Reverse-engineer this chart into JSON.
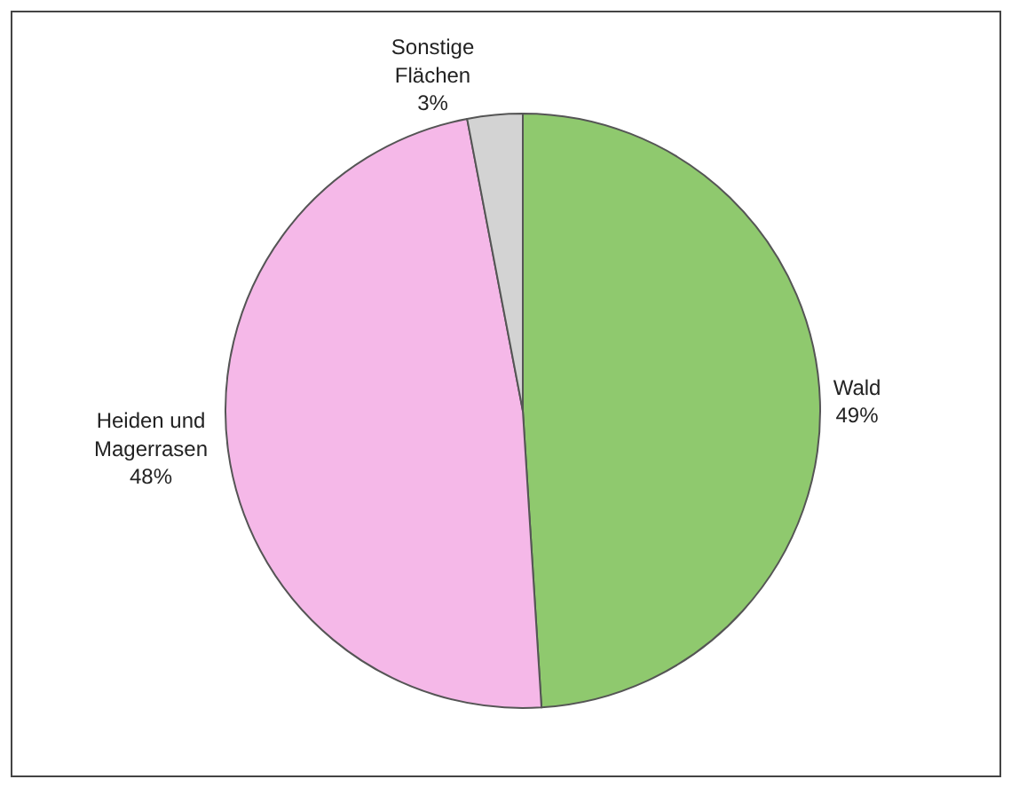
{
  "chart_data": {
    "type": "pie",
    "categories": [
      "Wald",
      "Heiden und Magerrasen",
      "Sonstige Flächen"
    ],
    "values": [
      49,
      48,
      3
    ],
    "value_labels": [
      "49%",
      "48%",
      "3%"
    ],
    "colors": [
      "#8fc96e",
      "#f5b8e8",
      "#d3d3d3"
    ]
  }
}
